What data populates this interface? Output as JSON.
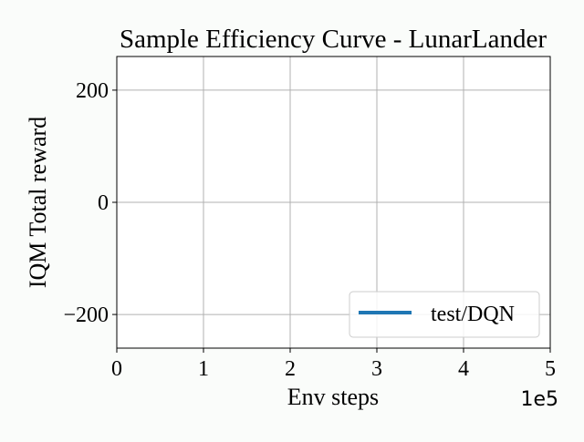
{
  "chart_data": {
    "type": "line",
    "title": "Sample Efficiency Curve - LunarLander",
    "xlabel": "Env steps",
    "ylabel": "IQM Total reward",
    "x_offset_text": "1e5",
    "xlim": [
      0,
      5
    ],
    "ylim": [
      -260,
      260
    ],
    "x_ticks": [
      0,
      1,
      2,
      3,
      4,
      5
    ],
    "x_tick_labels": [
      "0",
      "1",
      "2",
      "3",
      "4",
      "5"
    ],
    "y_ticks": [
      -200,
      0,
      200
    ],
    "y_tick_labels": [
      "−200",
      "0",
      "200"
    ],
    "grid": true,
    "legend_position": "lower right",
    "series": [
      {
        "name": "test/DQN",
        "color": "#1f77b4",
        "x": [],
        "y": []
      }
    ]
  }
}
